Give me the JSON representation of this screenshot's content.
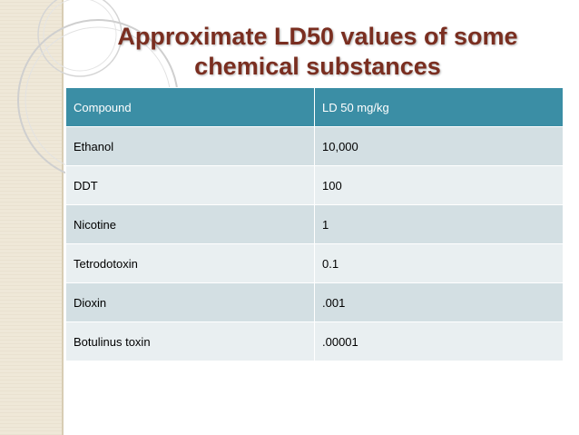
{
  "slide": {
    "title_lines": [
      "Approximate LD50 values of some",
      "chemical substances"
    ],
    "colors": {
      "title": "#7a2e20",
      "header_bg": "#3b8ea5",
      "header_text": "#ffffff",
      "row_bg": "#d3dfe3",
      "row_alt_bg": "#e9eff1",
      "band_bg": "#efe8d8"
    }
  },
  "table": {
    "headers": [
      "Compound",
      "LD 50 mg/kg"
    ],
    "rows": [
      [
        "Ethanol",
        "10,000"
      ],
      [
        "DDT",
        "100"
      ],
      [
        "Nicotine",
        "1"
      ],
      [
        "Tetrodotoxin",
        "0.1"
      ],
      [
        "Dioxin",
        ".001"
      ],
      [
        "Botulinus toxin",
        ".00001"
      ]
    ]
  }
}
